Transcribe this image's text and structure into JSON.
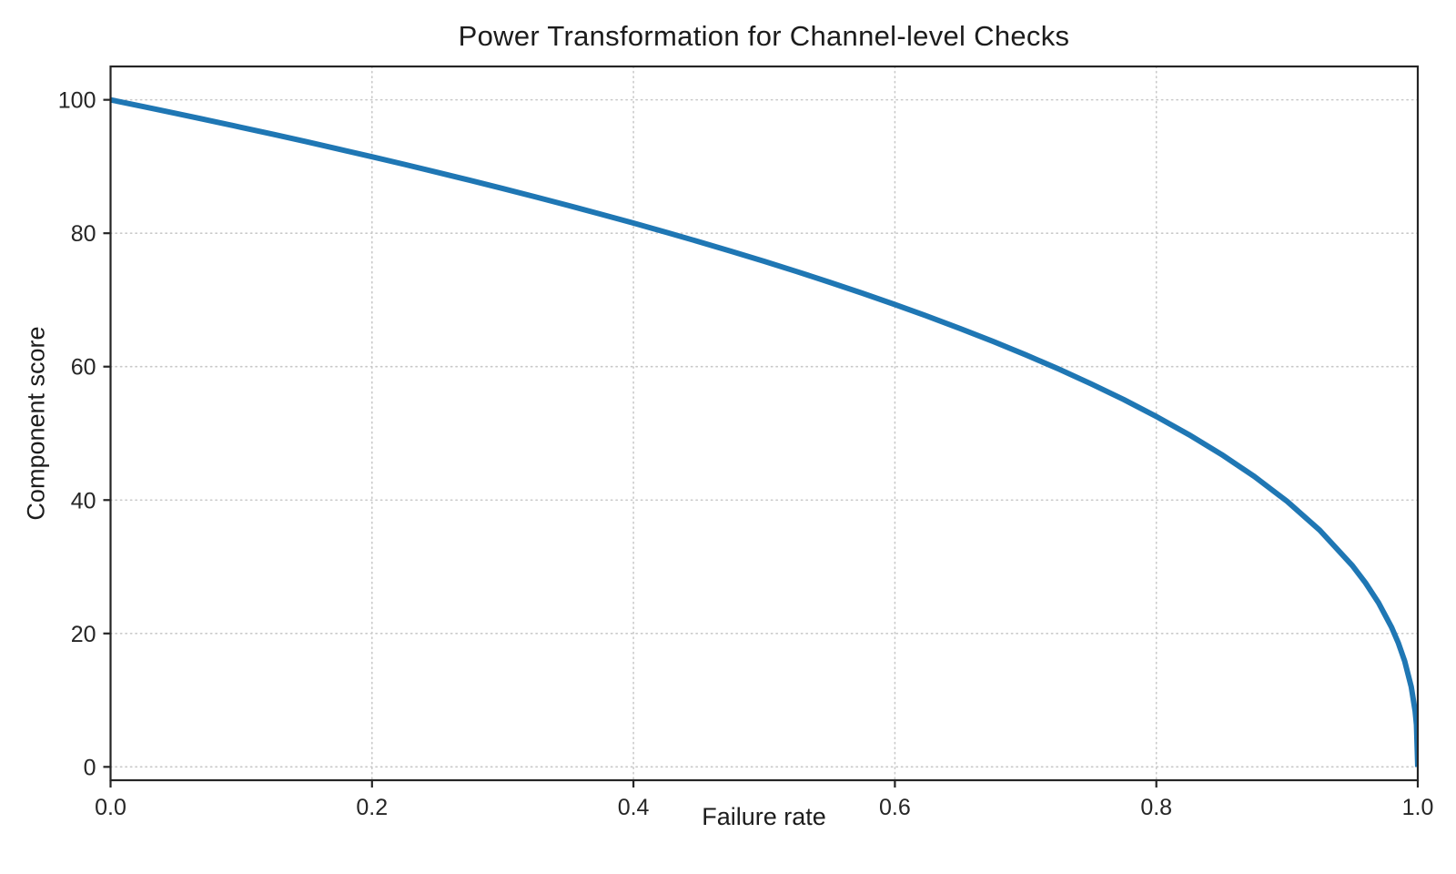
{
  "figure": {
    "background_color": "#ffffff",
    "title": "Power Transformation for Channel-level Checks"
  },
  "chart_data": {
    "type": "line",
    "title": "Power Transformation for Channel-level Checks",
    "xlabel": "Failure rate",
    "ylabel": "Component score",
    "xlim": [
      0.0,
      1.0
    ],
    "ylim": [
      -2,
      105
    ],
    "xticks": [
      0.0,
      0.2,
      0.4,
      0.6,
      0.8,
      1.0
    ],
    "xtick_labels": [
      "0.0",
      "0.2",
      "0.4",
      "0.6",
      "0.8",
      "1.0"
    ],
    "yticks": [
      0,
      20,
      40,
      60,
      80,
      100
    ],
    "ytick_labels": [
      "0",
      "20",
      "40",
      "60",
      "80",
      "100"
    ],
    "grid": true,
    "grid_style": "dotted",
    "legend": null,
    "colors": {
      "line": "#1f77b4",
      "grid": "#c9c9c9",
      "spine": "#252525",
      "text": "#262626"
    },
    "series": [
      {
        "name": "component-score-curve",
        "color": "#1f77b4",
        "line_width": 6,
        "x": [
          0,
          0.025,
          0.05,
          0.075,
          0.1,
          0.125,
          0.15,
          0.175,
          0.2,
          0.225,
          0.25,
          0.275,
          0.3,
          0.325,
          0.35,
          0.375,
          0.4,
          0.425,
          0.45,
          0.475,
          0.5,
          0.525,
          0.55,
          0.575,
          0.6,
          0.625,
          0.65,
          0.675,
          0.7,
          0.725,
          0.75,
          0.775,
          0.8,
          0.825,
          0.85,
          0.875,
          0.9,
          0.925,
          0.95,
          0.96,
          0.97,
          0.98,
          0.985,
          0.99,
          0.995,
          0.998,
          0.999,
          1.0
        ],
        "y": [
          100,
          98.99,
          97.97,
          96.93,
          95.87,
          94.8,
          93.71,
          92.59,
          91.46,
          90.31,
          89.13,
          87.93,
          86.7,
          85.45,
          84.17,
          82.86,
          81.52,
          80.14,
          78.73,
          77.28,
          75.79,
          74.25,
          72.66,
          71.02,
          69.31,
          67.55,
          65.71,
          63.79,
          61.78,
          59.67,
          57.43,
          55.07,
          52.53,
          49.8,
          46.82,
          43.53,
          39.81,
          35.48,
          30.17,
          27.59,
          24.6,
          20.91,
          18.64,
          15.85,
          12.01,
          8.33,
          6.31,
          0
        ]
      }
    ]
  }
}
